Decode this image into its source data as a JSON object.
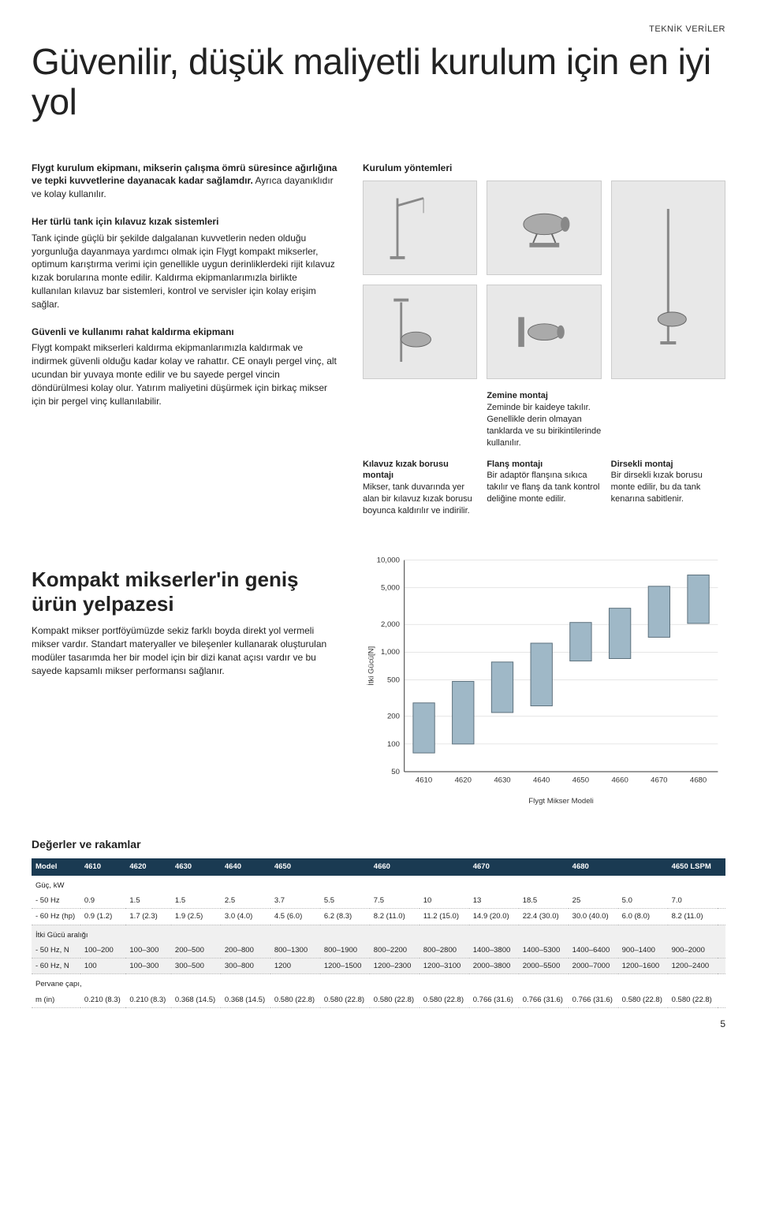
{
  "header_tag": "TEKNİK VERİLER",
  "page_title": "Güvenilir, düşük maliyetli kurulum için en iyi yol",
  "intro_bold": "Flygt kurulum ekipmanı, mikserin çalışma ömrü süresince ağırlığına ve tepki kuvvetlerine dayanacak kadar sağlamdır.",
  "intro_rest": " Ayrıca dayanıklıdır ve kolay kullanılır.",
  "block1_title": "Her türlü tank için kılavuz kızak sistemleri",
  "block1_body": "Tank içinde güçlü bir şekilde dalgalanan kuvvetlerin neden olduğu yorgunluğa dayanmaya yardımcı olmak için Flygt kompakt mikserler, optimum karıştırma verimi için genellikle uygun derinliklerdeki rijit kılavuz kızak borularına monte edilir. Kaldırma ekipmanlarımızla birlikte kullanılan kılavuz bar sistemleri, kontrol ve servisler için kolay erişim sağlar.",
  "block2_title": "Güvenli ve kullanımı rahat kaldırma ekipmanı",
  "block2_body": "Flygt kompakt mikserleri kaldırma ekipmanlarımızla kaldırmak ve indirmek güvenli olduğu kadar kolay ve rahattır. CE onaylı pergel vinç, alt ucundan bir yuvaya monte edilir ve bu sayede pergel vincin döndürülmesi kolay olur. Yatırım maliyetini düşürmek için birkaç mikser için bir pergel vinç kullanılabilir.",
  "methods_heading": "Kurulum yöntemleri",
  "methods": [
    {
      "title": "",
      "body": ""
    },
    {
      "title": "Zemine montaj",
      "body": "Zeminde bir kaideye takılır. Genellikle derin olmayan tanklarda ve su birikintilerinde kullanılır."
    },
    {
      "title": "",
      "body": ""
    },
    {
      "title": "Kılavuz kızak borusu montajı",
      "body": "Mikser, tank duvarında yer alan bir kılavuz kızak borusu boyunca kaldırılır ve indirilir."
    },
    {
      "title": "Flanş montajı",
      "body": "Bir adaptör flanşına sıkıca takılır ve flanş da tank kontrol deliğine monte edilir."
    },
    {
      "title": "Dirsekli montaj",
      "body": "Bir dirsekli kızak borusu monte edilir, bu da tank kenarına sabitlenir."
    }
  ],
  "sub_heading": "Kompakt mikserler'in geniş ürün yelpazesi",
  "sub_body": "Kompakt mikser portföyümüzde sekiz farklı boyda direkt yol vermeli mikser vardır. Standart materyaller ve bileşenler kullanarak oluşturulan modüler tasarımda her bir model için bir dizi kanat açısı vardır ve bu sayede kapsamlı mikser performansı sağlanır.",
  "chart": {
    "type": "boxplot-range",
    "ylabel": "İtki Gücü[N]",
    "xlabel": "Flygt Mikser Modeli",
    "y_ticks": [
      50,
      100,
      200,
      500,
      1000,
      2000,
      5000,
      10000
    ],
    "y_scale": "log",
    "x_labels": [
      "4610",
      "4620",
      "4630",
      "4640",
      "4650",
      "4660",
      "4670",
      "4680"
    ],
    "ranges": [
      {
        "lo": 80,
        "hi": 280
      },
      {
        "lo": 100,
        "hi": 480
      },
      {
        "lo": 220,
        "hi": 780
      },
      {
        "lo": 260,
        "hi": 1250
      },
      {
        "lo": 800,
        "hi": 2100
      },
      {
        "lo": 850,
        "hi": 3000
      },
      {
        "lo": 1450,
        "hi": 5200
      },
      {
        "lo": 2050,
        "hi": 6900
      }
    ],
    "bar_fill": "#9fb8c7",
    "bar_stroke": "#5a6e7a",
    "grid_color": "#cccccc",
    "axis_color": "#333333",
    "font_size": 10
  },
  "deg_title": "Değerler ve rakamlar",
  "table": {
    "header": [
      "Model",
      "4610",
      "4620",
      "4630",
      "4640",
      "4650",
      "",
      "4660",
      "",
      "4670",
      "",
      "4680",
      "",
      "4650 LSPM",
      ""
    ],
    "rows": [
      {
        "section": "Güç, kW",
        "alt": false
      },
      {
        "label": "- 50 Hz",
        "cells": [
          "0.9",
          "1.5",
          "1.5",
          "2.5",
          "3.7",
          "5.5",
          "7.5",
          "10",
          "13",
          "18.5",
          "25",
          "5.0",
          "7.0"
        ],
        "alt": false
      },
      {
        "label": "- 60 Hz (hp)",
        "cells": [
          "0.9 (1.2)",
          "1.7 (2.3)",
          "1.9 (2.5)",
          "3.0 (4.0)",
          "4.5 (6.0)",
          "6.2 (8.3)",
          "8.2 (11.0)",
          "11.2 (15.0)",
          "14.9 (20.0)",
          "22.4 (30.0)",
          "30.0 (40.0)",
          "6.0 (8.0)",
          "8.2 (11.0)"
        ],
        "alt": false
      },
      {
        "section": "İtki Gücü aralığı",
        "alt": true
      },
      {
        "label": "- 50 Hz, N",
        "cells": [
          "100–200",
          "100–300",
          "200–500",
          "200–800",
          "800–1300",
          "800–1900",
          "800–2200",
          "800–2800",
          "1400–3800",
          "1400–5300",
          "1400–6400",
          "900–1400",
          "900–2000"
        ],
        "alt": true
      },
      {
        "label": "- 60 Hz, N",
        "cells": [
          "100",
          "100–300",
          "300–500",
          "300–800",
          "1200",
          "1200–1500",
          "1200–2300",
          "1200–3100",
          "2000–3800",
          "2000–5500",
          "2000–7000",
          "1200–1600",
          "1200–2400"
        ],
        "alt": true
      },
      {
        "section": "Pervane çapı,",
        "alt": false
      },
      {
        "label": "m (in)",
        "cells": [
          "0.210 (8.3)",
          "0.210 (8.3)",
          "0.368 (14.5)",
          "0.368 (14.5)",
          "0.580 (22.8)",
          "0.580 (22.8)",
          "0.580 (22.8)",
          "0.580 (22.8)",
          "0.766 (31.6)",
          "0.766 (31.6)",
          "0.766 (31.6)",
          "0.580 (22.8)",
          "0.580 (22.8)"
        ],
        "alt": false
      }
    ]
  },
  "page_num": "5"
}
